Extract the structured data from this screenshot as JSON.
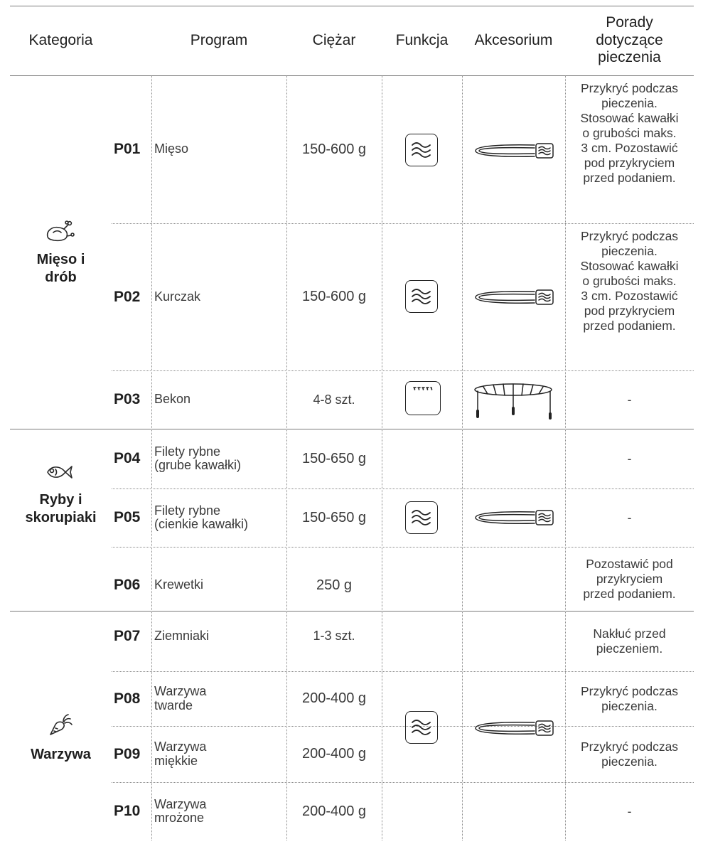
{
  "headers": {
    "kategoria": "Kategoria",
    "program": "Program",
    "ciezar": "Ciężar",
    "funkcja": "Funkcja",
    "akcesorium": "Akcesorium",
    "porady_line1": "Porady",
    "porady_line2": "dotyczące",
    "porady_line3": "pieczenia"
  },
  "icons": {
    "meat": "chicken-leg-icon",
    "fish": "fish-icon",
    "vegetables": "carrot-icon",
    "microwave": "microwave-waves-icon",
    "grill": "grill-icon",
    "plate": "turntable-plate-icon",
    "rack": "grill-rack-icon"
  },
  "categories": [
    {
      "line1": "Mięso i",
      "line2": "drób"
    },
    {
      "line1": "Ryby i",
      "line2": "skorupiaki"
    },
    {
      "line1": "Warzywa",
      "line2": ""
    }
  ],
  "rows": [
    {
      "code": "P01",
      "program_l1": "Mięso",
      "program_l2": "",
      "weight": "150-600 g",
      "tip": [
        "Przykryć podczas",
        "pieczenia.",
        "Stosować kawałki",
        "o grubości maks.",
        "3 cm. Pozostawić",
        "pod przykryciem",
        "przed podaniem."
      ]
    },
    {
      "code": "P02",
      "program_l1": "Kurczak",
      "program_l2": "",
      "weight": "150-600 g",
      "tip": [
        "Przykryć podczas",
        "pieczenia.",
        "Stosować kawałki",
        "o grubości maks.",
        "3 cm. Pozostawić",
        "pod przykryciem",
        "przed podaniem."
      ]
    },
    {
      "code": "P03",
      "program_l1": "Bekon",
      "program_l2": "",
      "weight": "4-8 szt.",
      "tip": [
        "-"
      ]
    },
    {
      "code": "P04",
      "program_l1": "Filety rybne",
      "program_l2": "(grube kawałki)",
      "weight": "150-650 g",
      "tip": [
        "-"
      ]
    },
    {
      "code": "P05",
      "program_l1": "Filety rybne",
      "program_l2": "(cienkie kawałki)",
      "weight": "150-650 g",
      "tip": [
        "-"
      ]
    },
    {
      "code": "P06",
      "program_l1": "Krewetki",
      "program_l2": "",
      "weight": "250 g",
      "tip": [
        "Pozostawić pod",
        "przykryciem",
        "przed podaniem."
      ]
    },
    {
      "code": "P07",
      "program_l1": "Ziemniaki",
      "program_l2": "",
      "weight": "1-3 szt.",
      "tip": [
        "Nakłuć przed",
        "pieczeniem."
      ]
    },
    {
      "code": "P08",
      "program_l1": "Warzywa",
      "program_l2": "twarde",
      "weight": "200-400 g",
      "tip": [
        "Przykryć podczas",
        "pieczenia."
      ]
    },
    {
      "code": "P09",
      "program_l1": "Warzywa",
      "program_l2": "miękkie",
      "weight": "200-400 g",
      "tip": [
        "Przykryć podczas",
        "pieczenia."
      ]
    },
    {
      "code": "P10",
      "program_l1": "Warzywa",
      "program_l2": "mrożone",
      "weight": "200-400 g",
      "tip": [
        "-"
      ]
    }
  ]
}
